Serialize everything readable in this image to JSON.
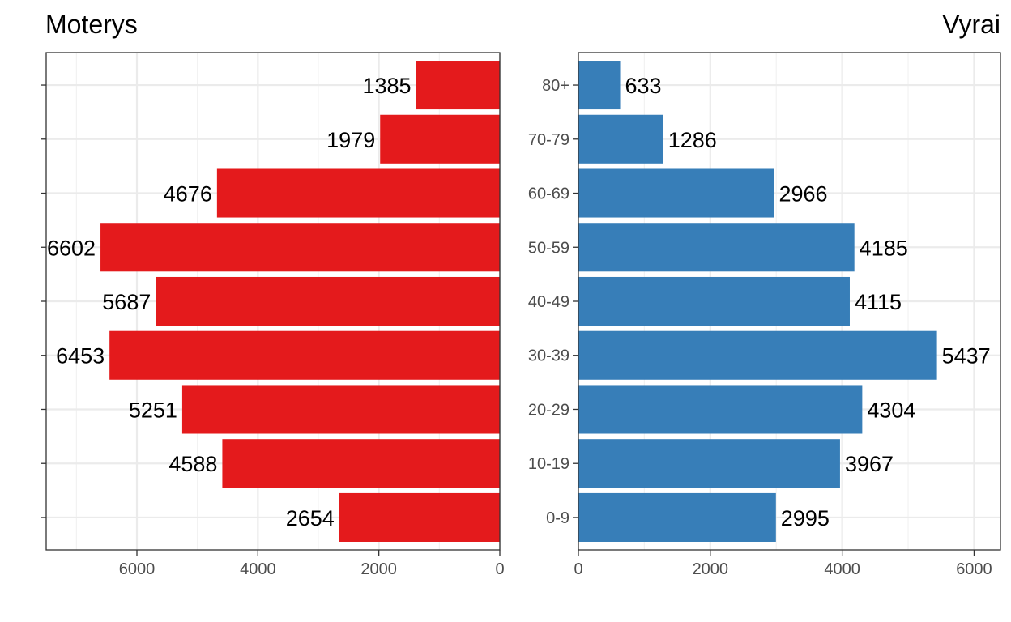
{
  "chart_data": [
    {
      "type": "bar",
      "orientation": "horizontal",
      "direction": "reversed",
      "title": "Moterys",
      "categories": [
        "0-9",
        "10-19",
        "20-29",
        "30-39",
        "40-49",
        "50-59",
        "60-69",
        "70-79",
        "80+"
      ],
      "values": [
        2654,
        4588,
        5251,
        6453,
        5687,
        6602,
        4676,
        1979,
        1385
      ],
      "xlim": [
        0,
        7500
      ],
      "x_ticks": [
        0,
        2000,
        4000,
        6000
      ],
      "grid": true,
      "category_labels_shown": false,
      "color": "#e41a1c"
    },
    {
      "type": "bar",
      "orientation": "horizontal",
      "direction": "normal",
      "title": "Vyrai",
      "categories": [
        "0-9",
        "10-19",
        "20-29",
        "30-39",
        "40-49",
        "50-59",
        "60-69",
        "70-79",
        "80+"
      ],
      "values": [
        2995,
        3967,
        4304,
        5437,
        4115,
        4185,
        2966,
        1286,
        633
      ],
      "xlim": [
        0,
        6400
      ],
      "x_ticks": [
        0,
        2000,
        4000,
        6000
      ],
      "grid": true,
      "category_labels_shown": true,
      "color": "#377eb8"
    }
  ]
}
